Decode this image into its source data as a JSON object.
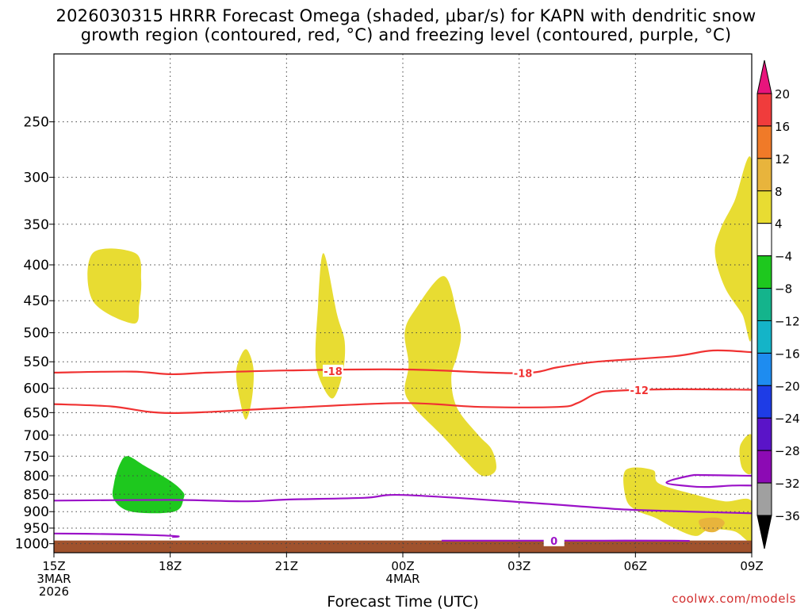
{
  "title_lines": [
    "2026030315 HRRR Forecast Omega (shaded, μbar/s) for KAPN with dendritic snow",
    "growth region (contoured, red, °C) and freezing level (contoured, purple, °C)"
  ],
  "watermark": "coolwx.com/models",
  "chart_data": {
    "type": "heatmap",
    "title": "2026030315 HRRR Forecast Omega (shaded, μbar/s) for KAPN with dendritic snow growth region (contoured, red, °C) and freezing level (contoured, purple, °C)",
    "xlabel": "Forecast Time (UTC)",
    "ylabel": "",
    "x_range_hours": [
      0,
      18
    ],
    "x_ticks": [
      {
        "hour": 0,
        "lines": [
          "15Z",
          "3MAR",
          "2026"
        ]
      },
      {
        "hour": 3,
        "lines": [
          "18Z"
        ]
      },
      {
        "hour": 6,
        "lines": [
          "21Z"
        ]
      },
      {
        "hour": 9,
        "lines": [
          "00Z",
          "4MAR"
        ]
      },
      {
        "hour": 12,
        "lines": [
          "03Z"
        ]
      },
      {
        "hour": 15,
        "lines": [
          "06Z"
        ]
      },
      {
        "hour": 18,
        "lines": [
          "09Z"
        ]
      }
    ],
    "y_scale": "log",
    "y_inverted": true,
    "y_range_hpa": [
      200,
      1030
    ],
    "y_ticks": [
      250,
      300,
      350,
      400,
      450,
      500,
      550,
      600,
      650,
      700,
      750,
      800,
      850,
      900,
      950,
      1000
    ],
    "grid": true,
    "ground_fill": {
      "color": "#a0522d",
      "top_hpa": 1000
    },
    "colorbar": {
      "levels": [
        "20",
        "16",
        "12",
        "8",
        "4",
        "−4",
        "−8",
        "−12",
        "−16",
        "−20",
        "−24",
        "−28",
        "−32",
        "−36"
      ],
      "colors": [
        "#e8147c",
        "#f03c3c",
        "#f07a28",
        "#e8b43c",
        "#e8dc32",
        "#ffffff",
        "#1ec81e",
        "#14b48c",
        "#14b4c8",
        "#1e8cf0",
        "#1e3ce6",
        "#5a14c8",
        "#8c0ab4",
        "#a0a0a0",
        "#000000"
      ]
    },
    "shaded_regions": [
      {
        "color": "#e8dc32",
        "label": "4 to 8",
        "points": [
          [
            1.0,
            385
          ],
          [
            2.1,
            385
          ],
          [
            2.25,
            420
          ],
          [
            2.2,
            455
          ],
          [
            2.05,
            485
          ],
          [
            1.0,
            450
          ]
        ]
      },
      {
        "color": "#e8dc32",
        "label": "4 to 8",
        "points": [
          [
            5.0,
            530
          ],
          [
            5.15,
            565
          ],
          [
            5.1,
            625
          ],
          [
            4.95,
            665
          ],
          [
            4.8,
            625
          ],
          [
            4.7,
            570
          ],
          [
            4.85,
            535
          ]
        ]
      },
      {
        "color": "#e8dc32",
        "label": "4 to 8",
        "points": [
          [
            6.95,
            385
          ],
          [
            7.3,
            470
          ],
          [
            7.5,
            515
          ],
          [
            7.45,
            570
          ],
          [
            7.2,
            620
          ],
          [
            6.9,
            590
          ],
          [
            6.75,
            545
          ],
          [
            6.8,
            470
          ]
        ]
      },
      {
        "color": "#e8dc32",
        "label": "4 to 8",
        "points": [
          [
            10.05,
            415
          ],
          [
            10.4,
            470
          ],
          [
            10.5,
            505
          ],
          [
            10.4,
            540
          ],
          [
            10.25,
            580
          ],
          [
            10.4,
            640
          ],
          [
            10.95,
            700
          ],
          [
            11.3,
            735
          ],
          [
            11.4,
            785
          ],
          [
            11.05,
            800
          ],
          [
            10.6,
            760
          ],
          [
            10.0,
            700
          ],
          [
            9.3,
            640
          ],
          [
            9.05,
            605
          ],
          [
            9.15,
            555
          ],
          [
            9.05,
            500
          ],
          [
            9.3,
            465
          ]
        ]
      },
      {
        "color": "#e8dc32",
        "label": "4 to 8",
        "points": [
          [
            18.0,
            285
          ],
          [
            17.55,
            325
          ],
          [
            17.2,
            355
          ],
          [
            17.05,
            385
          ],
          [
            17.3,
            430
          ],
          [
            17.75,
            470
          ],
          [
            18.0,
            500
          ]
        ]
      },
      {
        "color": "#e8dc32",
        "label": "4 to 8",
        "points": [
          [
            18.0,
            700
          ],
          [
            17.7,
            725
          ],
          [
            17.75,
            780
          ],
          [
            18.0,
            790
          ]
        ]
      },
      {
        "color": "#e8dc32",
        "label": "4 to 8",
        "points": [
          [
            14.75,
            785
          ],
          [
            15.45,
            785
          ],
          [
            15.6,
            820
          ],
          [
            16.5,
            850
          ],
          [
            17.3,
            870
          ],
          [
            18.0,
            870
          ],
          [
            18.0,
            990
          ],
          [
            17.55,
            960
          ],
          [
            16.9,
            955
          ],
          [
            16.55,
            975
          ],
          [
            16.0,
            950
          ],
          [
            15.5,
            918
          ],
          [
            15.0,
            895
          ],
          [
            14.75,
            860
          ]
        ]
      },
      {
        "color": "#e8b43c",
        "label": "8 to 12",
        "points": [
          [
            16.65,
            925
          ],
          [
            17.1,
            918
          ],
          [
            17.3,
            935
          ],
          [
            17.05,
            962
          ],
          [
            16.75,
            955
          ]
        ]
      },
      {
        "color": "#1ec81e",
        "label": "-8 to -4",
        "points": [
          [
            1.9,
            750
          ],
          [
            2.35,
            775
          ],
          [
            2.95,
            810
          ],
          [
            3.3,
            840
          ],
          [
            3.35,
            860
          ],
          [
            3.1,
            900
          ],
          [
            2.0,
            900
          ],
          [
            1.55,
            865
          ],
          [
            1.55,
            820
          ],
          [
            1.7,
            770
          ]
        ]
      }
    ],
    "contours": [
      {
        "name": "-18",
        "color": "#f03232",
        "label_x": 7.2,
        "points": [
          [
            0,
            570
          ],
          [
            2.0,
            568
          ],
          [
            3.0,
            573
          ],
          [
            4.0,
            570
          ],
          [
            6.0,
            566
          ],
          [
            9.0,
            564
          ],
          [
            12.0,
            571
          ],
          [
            13.0,
            560
          ],
          [
            14.0,
            550
          ],
          [
            16.0,
            540
          ],
          [
            17.0,
            530
          ],
          [
            18.0,
            533
          ]
        ]
      },
      {
        "name": "-18",
        "color": "#f03232",
        "label_x": 12.1,
        "points": []
      },
      {
        "name": "-12",
        "color": "#f03232",
        "label_x": 15.1,
        "points": [
          [
            0,
            632
          ],
          [
            1.5,
            637
          ],
          [
            3.0,
            651
          ],
          [
            6.0,
            640
          ],
          [
            9.0,
            630
          ],
          [
            11.0,
            638
          ],
          [
            13.0,
            638
          ],
          [
            13.5,
            630
          ],
          [
            14.0,
            610
          ],
          [
            14.5,
            605
          ],
          [
            16.0,
            602
          ],
          [
            18.0,
            603
          ]
        ]
      },
      {
        "name": "0",
        "color": "#9b12c8",
        "points": [
          [
            0,
            868
          ],
          [
            3.0,
            866
          ],
          [
            5.0,
            870
          ],
          [
            6.0,
            865
          ],
          [
            8.0,
            860
          ],
          [
            9.0,
            852
          ],
          [
            12.0,
            872
          ],
          [
            14.0,
            888
          ],
          [
            15.0,
            895
          ],
          [
            18.0,
            905
          ]
        ]
      },
      {
        "name": "0",
        "color": "#9b12c8",
        "points": [
          [
            0,
            967
          ],
          [
            1.5,
            969
          ],
          [
            2.5,
            972
          ],
          [
            3.2,
            976
          ],
          [
            3.05,
            978
          ]
        ]
      },
      {
        "name": "0",
        "color": "#9b12c8",
        "label_x": 12.9,
        "points": [
          [
            10.0,
            990
          ],
          [
            12.0,
            990
          ],
          [
            14.0,
            990
          ],
          [
            16.0,
            990
          ],
          [
            16.4,
            991
          ]
        ]
      },
      {
        "name": "0",
        "color": "#9b12c8",
        "points": [
          [
            18.0,
            800
          ],
          [
            16.8,
            798
          ],
          [
            16.4,
            800
          ],
          [
            15.8,
            818
          ],
          [
            16.4,
            828
          ],
          [
            16.9,
            830
          ],
          [
            17.5,
            826
          ],
          [
            18.0,
            826
          ]
        ]
      }
    ],
    "contour_labels": [
      {
        "text": "-18",
        "x": 7.2,
        "p": 567,
        "color": "#f03232"
      },
      {
        "text": "-18",
        "x": 12.1,
        "p": 571,
        "color": "#f03232"
      },
      {
        "text": "-12",
        "x": 15.1,
        "p": 604,
        "color": "#f03232"
      },
      {
        "text": "0",
        "x": 12.9,
        "p": 990,
        "color": "#9b12c8"
      }
    ]
  }
}
